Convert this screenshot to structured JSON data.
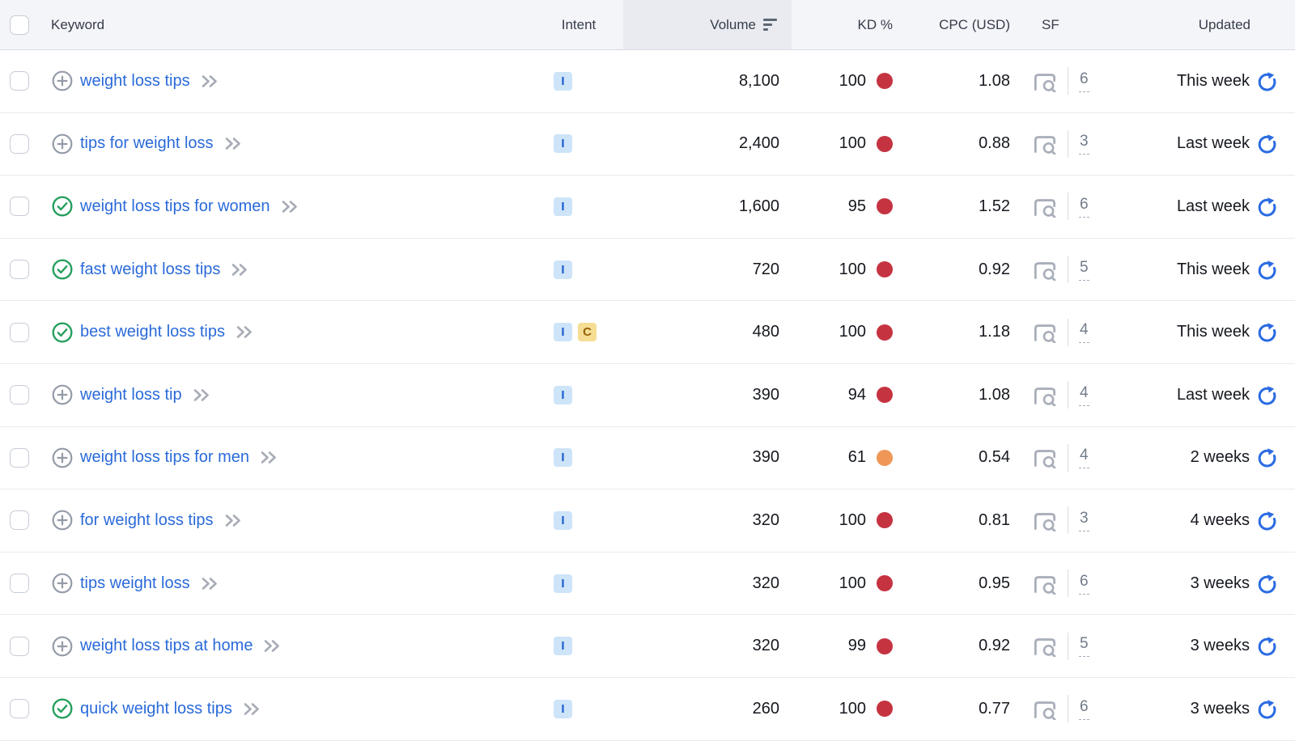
{
  "colors": {
    "kd_red": "#c53341",
    "kd_orange": "#ef9757",
    "link_blue": "#2a6ad9",
    "refresh_blue": "#2a6be2",
    "check_green": "#27a05f",
    "icon_gray": "#949ba8"
  },
  "intent_colors": {
    "I": {
      "bg": "#cde4f9",
      "fg": "#1b5cd0"
    },
    "C": {
      "bg": "#f5dd94",
      "fg": "#95600a"
    }
  },
  "table": {
    "columns": {
      "keyword": "Keyword",
      "intent": "Intent",
      "volume": "Volume",
      "kd": "KD %",
      "cpc": "CPC (USD)",
      "sf": "SF",
      "updated": "Updated"
    },
    "sorted_column": "volume",
    "rows": [
      {
        "keyword": "weight loss tips",
        "status": "add",
        "intents": [
          "I"
        ],
        "volume": "8,100",
        "kd": "100",
        "kd_level": "red",
        "cpc": "1.08",
        "sf": "6",
        "updated": "This week"
      },
      {
        "keyword": "tips for weight loss",
        "status": "add",
        "intents": [
          "I"
        ],
        "volume": "2,400",
        "kd": "100",
        "kd_level": "red",
        "cpc": "0.88",
        "sf": "3",
        "updated": "Last week"
      },
      {
        "keyword": "weight loss tips for women",
        "status": "added",
        "intents": [
          "I"
        ],
        "volume": "1,600",
        "kd": "95",
        "kd_level": "red",
        "cpc": "1.52",
        "sf": "6",
        "updated": "Last week"
      },
      {
        "keyword": "fast weight loss tips",
        "status": "added",
        "intents": [
          "I"
        ],
        "volume": "720",
        "kd": "100",
        "kd_level": "red",
        "cpc": "0.92",
        "sf": "5",
        "updated": "This week"
      },
      {
        "keyword": "best weight loss tips",
        "status": "added",
        "intents": [
          "I",
          "C"
        ],
        "volume": "480",
        "kd": "100",
        "kd_level": "red",
        "cpc": "1.18",
        "sf": "4",
        "updated": "This week"
      },
      {
        "keyword": "weight loss tip",
        "status": "add",
        "intents": [
          "I"
        ],
        "volume": "390",
        "kd": "94",
        "kd_level": "red",
        "cpc": "1.08",
        "sf": "4",
        "updated": "Last week"
      },
      {
        "keyword": "weight loss tips for men",
        "status": "add",
        "intents": [
          "I"
        ],
        "volume": "390",
        "kd": "61",
        "kd_level": "orange",
        "cpc": "0.54",
        "sf": "4",
        "updated": "2 weeks"
      },
      {
        "keyword": "for weight loss tips",
        "status": "add",
        "intents": [
          "I"
        ],
        "volume": "320",
        "kd": "100",
        "kd_level": "red",
        "cpc": "0.81",
        "sf": "3",
        "updated": "4 weeks"
      },
      {
        "keyword": "tips weight loss",
        "status": "add",
        "intents": [
          "I"
        ],
        "volume": "320",
        "kd": "100",
        "kd_level": "red",
        "cpc": "0.95",
        "sf": "6",
        "updated": "3 weeks"
      },
      {
        "keyword": "weight loss tips at home",
        "status": "add",
        "intents": [
          "I"
        ],
        "volume": "320",
        "kd": "99",
        "kd_level": "red",
        "cpc": "0.92",
        "sf": "5",
        "updated": "3 weeks"
      },
      {
        "keyword": "quick weight loss tips",
        "status": "added",
        "intents": [
          "I"
        ],
        "volume": "260",
        "kd": "100",
        "kd_level": "red",
        "cpc": "0.77",
        "sf": "6",
        "updated": "3 weeks"
      }
    ]
  }
}
